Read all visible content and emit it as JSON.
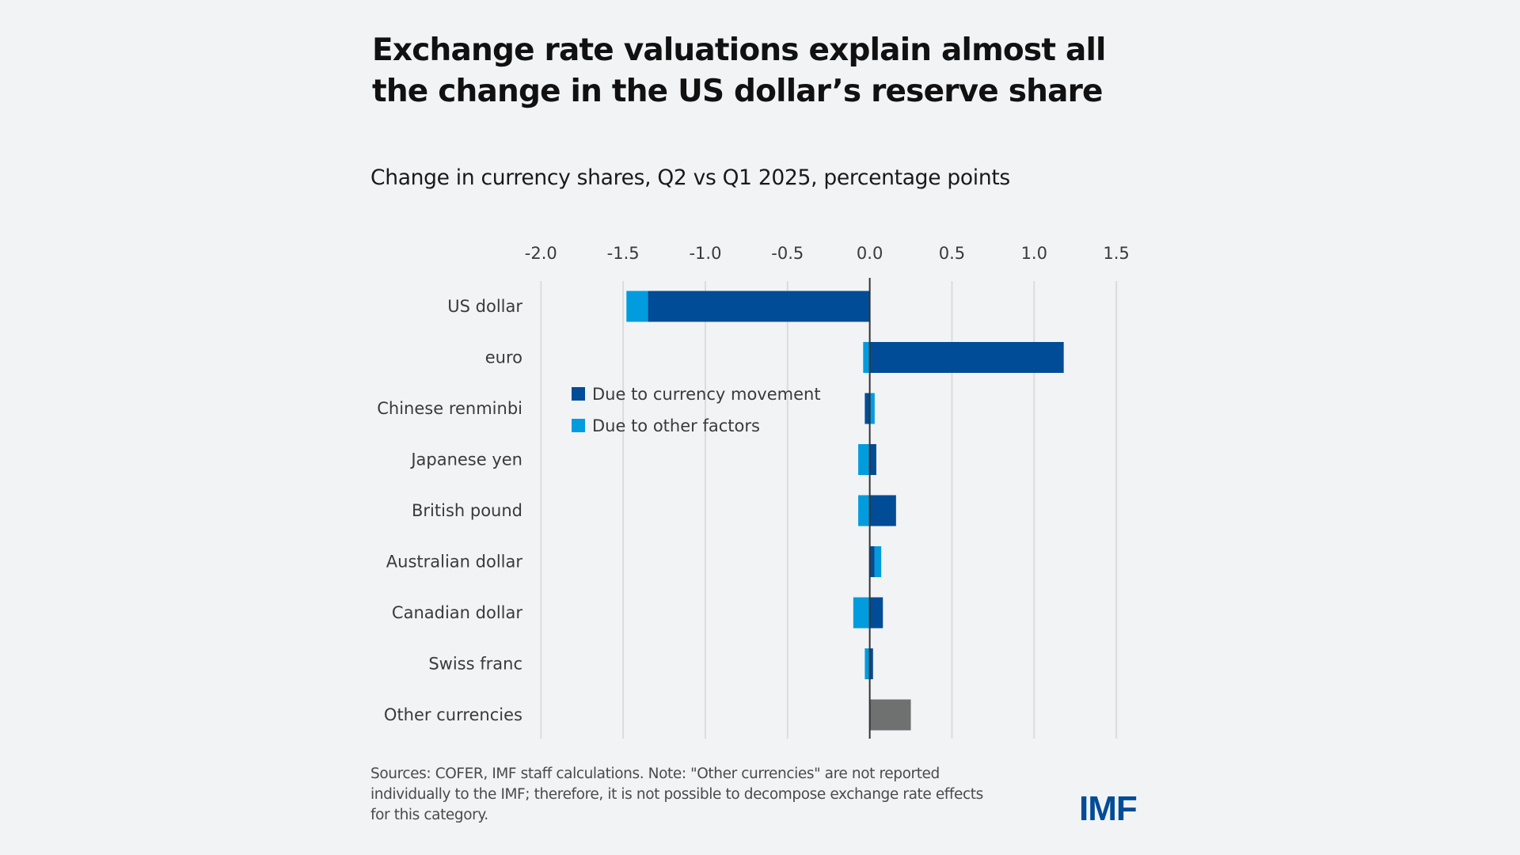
{
  "title": "Exchange rate valuations explain almost all the change in the US dollar’s reserve share",
  "subtitle": "Change in currency shares, Q2 vs Q1 2025, percentage points",
  "note": "Sources: COFER, IMF staff calculations. Note: \"Other currencies\" are not reported individually to the IMF; therefore, it is not possible to decompose exchange rate effects for this category.",
  "logo": "IMF",
  "colors": {
    "currency_movement": "#004c97",
    "other_factors": "#009cde",
    "other_currencies": "#6f7170",
    "gridline": "#dcdcdc",
    "zero_line": "#333333",
    "logo": "#004c97"
  },
  "chart_data": {
    "type": "bar",
    "orientation": "horizontal",
    "stacked": true,
    "title": "Exchange rate valuations explain almost all the change in the US dollar’s reserve share",
    "subtitle": "Change in currency shares, Q2 vs Q1 2025, percentage points",
    "xlabel": "",
    "ylabel": "",
    "xlim": [
      -2.0,
      1.5
    ],
    "x_ticks": [
      -2.0,
      -1.5,
      -1.0,
      -0.5,
      0.0,
      0.5,
      1.0,
      1.5
    ],
    "x_tick_labels": [
      "-2.0",
      "-1.5",
      "-1.0",
      "-0.5",
      "0.0",
      "0.5",
      "1.0",
      "1.5"
    ],
    "x_axis_position": "top",
    "grid": true,
    "legend_position": "center-left",
    "categories": [
      "US dollar",
      "euro",
      "Chinese renminbi",
      "Japanese yen",
      "British pound",
      "Australian dollar",
      "Canadian dollar",
      "Swiss franc",
      "Other currencies"
    ],
    "series": [
      {
        "name": "Due to currency movement",
        "color": "#004c97",
        "values": [
          -1.35,
          1.18,
          -0.03,
          0.04,
          0.16,
          0.03,
          0.08,
          0.02,
          null
        ]
      },
      {
        "name": "Due to other factors",
        "color": "#009cde",
        "values": [
          -0.13,
          -0.04,
          0.03,
          -0.07,
          -0.07,
          0.04,
          -0.1,
          -0.03,
          null
        ]
      },
      {
        "name": "Other currencies (total)",
        "color": "#6f7170",
        "values": [
          null,
          null,
          null,
          null,
          null,
          null,
          null,
          null,
          0.25
        ],
        "in_legend": false
      }
    ]
  }
}
